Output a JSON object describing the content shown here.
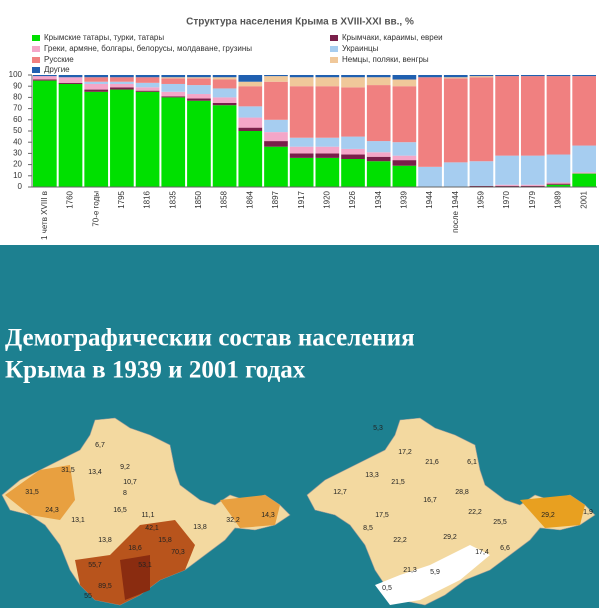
{
  "chart_data": {
    "type": "stacked_bar",
    "title": "Структура населения Крыма в XVIII-XXI вв., %",
    "categories": [
      "1 четв XVIII в",
      "1760",
      "70-е годы",
      "1795",
      "1816",
      "1835",
      "1850",
      "1858",
      "1864",
      "1897",
      "1917",
      "1920",
      "1926",
      "1934",
      "1939",
      "1944",
      "после 1944",
      "1959",
      "1970",
      "1979",
      "1989",
      "2001"
    ],
    "series": [
      {
        "name": "Крымские татары, турки, татары",
        "color": "#00e000",
        "values": [
          95,
          92,
          85,
          87,
          85,
          80,
          77,
          73,
          50,
          36,
          26,
          26,
          25,
          23,
          19,
          0,
          0,
          0,
          0,
          0,
          2,
          12
        ]
      },
      {
        "name": "Крымчаки, караимы, евреи",
        "color": "#7a1f4a",
        "values": [
          1,
          1,
          2,
          2,
          1,
          1,
          2,
          2,
          3,
          5,
          4,
          4,
          4,
          4,
          5,
          0,
          0,
          1,
          1,
          1,
          1,
          0
        ]
      },
      {
        "name": "Греки, армяне, болгары, белорусы, молдаване, грузины",
        "color": "#f4a6c8",
        "values": [
          3,
          5,
          5,
          3,
          3,
          4,
          4,
          5,
          9,
          8,
          6,
          6,
          5,
          4,
          4,
          0,
          0,
          0,
          1,
          1,
          1,
          1
        ]
      },
      {
        "name": "Украинцы",
        "color": "#a6cdf0",
        "values": [
          0,
          0,
          2,
          2,
          4,
          7,
          8,
          8,
          10,
          11,
          8,
          8,
          11,
          10,
          12,
          18,
          22,
          22,
          26,
          26,
          25,
          24
        ]
      },
      {
        "name": "Русские",
        "color": "#f08080",
        "values": [
          0,
          0,
          4,
          4,
          5,
          5,
          6,
          8,
          18,
          34,
          46,
          46,
          44,
          50,
          50,
          80,
          75,
          75,
          71,
          71,
          70,
          62
        ]
      },
      {
        "name": "Немцы, поляки, венгры",
        "color": "#f0c89a",
        "values": [
          0,
          0,
          0,
          0,
          0,
          1,
          1,
          2,
          4,
          5,
          8,
          8,
          9,
          7,
          6,
          0,
          1,
          1,
          0,
          0,
          0,
          0
        ]
      },
      {
        "name": "Другие",
        "color": "#2060b0",
        "values": [
          1,
          2,
          2,
          2,
          2,
          2,
          2,
          2,
          6,
          1,
          2,
          2,
          2,
          2,
          4,
          2,
          2,
          1,
          1,
          1,
          1,
          1
        ]
      }
    ],
    "ylim": [
      0,
      100
    ],
    "yticks": [
      0,
      10,
      20,
      30,
      40,
      50,
      60,
      70,
      80,
      90,
      100
    ]
  },
  "heading": [
    "Демографическии состав населения",
    "Крыма в 1939 и 2001 годах"
  ],
  "map_1939": {
    "labels": [
      "6,7",
      "31,5",
      "13,4",
      "9,2",
      "10,7",
      "31,5",
      "24,3",
      "8",
      "16,5",
      "11,1",
      "13,1",
      "15,8",
      "13,8",
      "14,3",
      "32,2",
      "42,1",
      "18,6",
      "13,8",
      "70,3",
      "55,7",
      "53,1",
      "89,5",
      "55"
    ]
  },
  "map_2001": {
    "labels": [
      "5,3",
      "17,2",
      "21,6",
      "6,1",
      "13,3",
      "21,5",
      "28,8",
      "12,7",
      "16,7",
      "22,2",
      "25,5",
      "29,2",
      "17,5",
      "8,5",
      "29,2",
      "17,4",
      "22,2",
      "21,3",
      "5,9",
      "6,6",
      "0,5",
      "1,9"
    ]
  }
}
